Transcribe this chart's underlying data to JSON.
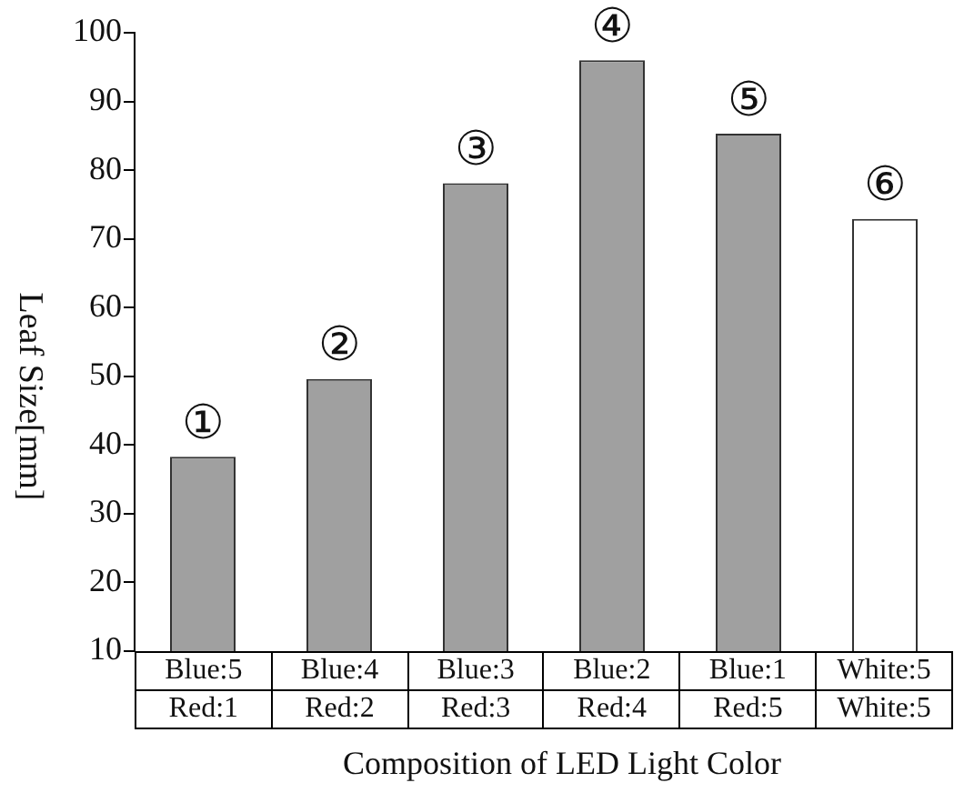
{
  "chart_data": {
    "type": "bar",
    "xlabel": "Composition of LED Light Color",
    "ylabel": "Leaf Size[mm]",
    "categories": [
      "Blue:5\nRed:1",
      "Blue:4\nRed:2",
      "Blue:3\nRed:3",
      "Blue:2\nRed:4",
      "Blue:1\nRed:5",
      "White:5\nWhite:5"
    ],
    "values": [
      38.3,
      49.6,
      78.1,
      96.0,
      85.3,
      72.9
    ],
    "colors": [
      "#a0a0a0",
      "#a0a0a0",
      "#a0a0a0",
      "#a0a0a0",
      "#a0a0a0",
      "#ffffff"
    ],
    "ylim": [
      10,
      100
    ],
    "yticks": [
      10,
      20,
      30,
      40,
      50,
      60,
      70,
      80,
      90,
      100
    ],
    "grid": false,
    "legend": false,
    "annotations": [
      {
        "text": "①",
        "x": "Blue:5\nRed:1",
        "y": 38.3
      },
      {
        "text": "②",
        "x": "Blue:4\nRed:2",
        "y": 49.6
      },
      {
        "text": "③",
        "x": "Blue:3\nRed:3",
        "y": 78.1
      },
      {
        "text": "④",
        "x": "Blue:2\nRed:4",
        "y": 96.0
      },
      {
        "text": "⑤",
        "x": "Blue:1\nRed:5",
        "y": 85.3
      },
      {
        "text": "⑥",
        "x": "White:5\nWhite:5",
        "y": 72.9
      }
    ]
  }
}
